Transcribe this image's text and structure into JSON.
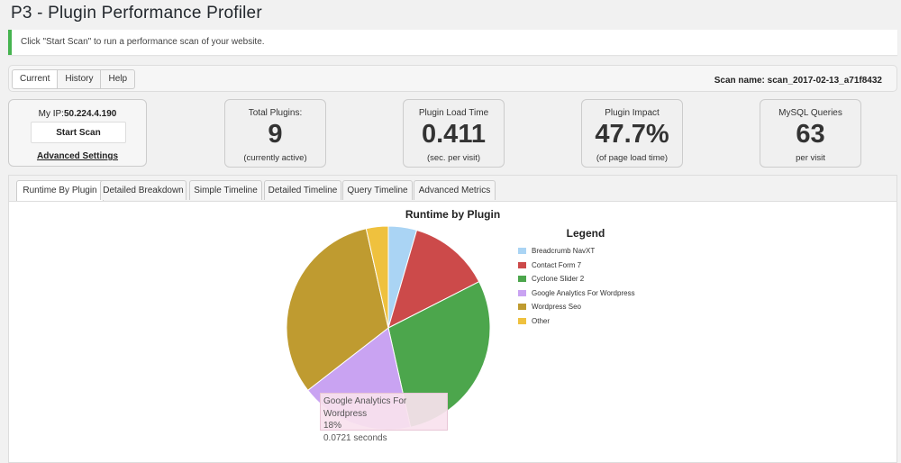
{
  "page": {
    "title": "P3 - Plugin Performance Profiler"
  },
  "notice": {
    "text": "Click \"Start Scan\" to run a performance scan of your website."
  },
  "top_tabs": [
    {
      "label": "Current",
      "active": true
    },
    {
      "label": "History",
      "active": false
    },
    {
      "label": "Help",
      "active": false
    }
  ],
  "scan_name": "Scan name: scan_2017-02-13_a71f8432",
  "ip": {
    "label": "My IP:",
    "value": "50.224.4.190"
  },
  "buttons": {
    "start_scan": "Start Scan",
    "advanced_settings": "Advanced Settings"
  },
  "stats": [
    {
      "label": "Total Plugins:",
      "value": "9",
      "sub": "(currently active)"
    },
    {
      "label": "Plugin Load Time",
      "value": "0.411",
      "sub": "(sec. per visit)"
    },
    {
      "label": "Plugin Impact",
      "value": "47.7%",
      "sub": "(of page load time)"
    },
    {
      "label": "MySQL Queries",
      "value": "63",
      "sub": "per visit"
    }
  ],
  "panel_tabs": [
    {
      "label": "Runtime By Plugin",
      "active": true
    },
    {
      "label": "Detailed Breakdown",
      "active": false
    },
    {
      "label": "Simple Timeline",
      "active": false
    },
    {
      "label": "Detailed Timeline",
      "active": false
    },
    {
      "label": "Query Timeline",
      "active": false
    },
    {
      "label": "Advanced Metrics",
      "active": false
    }
  ],
  "chart_data": {
    "type": "pie",
    "title": "Runtime by Plugin",
    "legend_title": "Legend",
    "legend_position": "right",
    "slices": [
      {
        "name": "Breadcrumb NavXT",
        "value": 4.5,
        "color": "#aad4f4"
      },
      {
        "name": "Contact Form 7",
        "value": 13,
        "color": "#cc4a4a"
      },
      {
        "name": "Cyclone Slider 2",
        "value": 29,
        "color": "#4ca64c"
      },
      {
        "name": "Google Analytics For Wordpress",
        "value": 18,
        "color": "#c9a3f2"
      },
      {
        "name": "Wordpress Seo",
        "value": 32,
        "color": "#bf9b30"
      },
      {
        "name": "Other",
        "value": 3.5,
        "color": "#efc13e"
      }
    ],
    "tooltip": {
      "series": "Google Analytics For Wordpress",
      "percent": "18%",
      "seconds": "0.0721 seconds"
    }
  }
}
